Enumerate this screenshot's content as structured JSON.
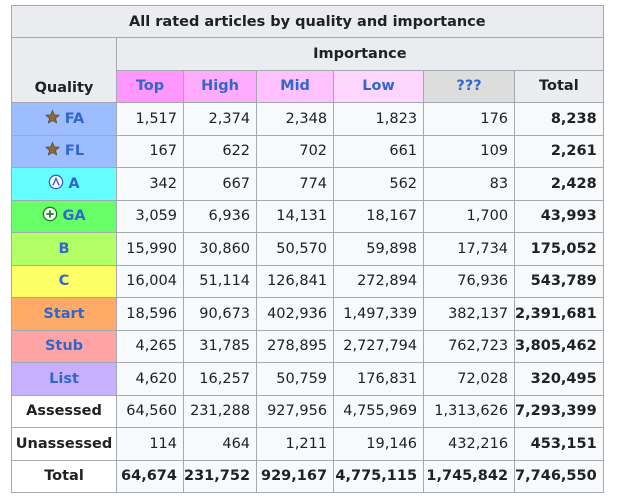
{
  "caption": "All rated articles by quality and importance",
  "importance_label": "Importance",
  "quality_label": "Quality",
  "columns": [
    {
      "label": "Top",
      "color": "#ff97ff"
    },
    {
      "label": "High",
      "color": "#ffacff"
    },
    {
      "label": "Mid",
      "color": "#ffc1ff"
    },
    {
      "label": "Low",
      "color": "#ffd6ff"
    },
    {
      "label": "???",
      "color": "#dddddd"
    }
  ],
  "total_label": "Total",
  "rows": [
    {
      "label": "FA",
      "icon": "star-icon",
      "color": "#9cbdff",
      "values": [
        "1,517",
        "2,374",
        "2,348",
        "1,823",
        "176"
      ],
      "total": "8,238"
    },
    {
      "label": "FL",
      "icon": "star-icon",
      "color": "#9cbdff",
      "values": [
        "167",
        "622",
        "702",
        "661",
        "109"
      ],
      "total": "2,261"
    },
    {
      "label": "A",
      "icon": "a-class-icon",
      "color": "#66ffff",
      "values": [
        "342",
        "667",
        "774",
        "562",
        "83"
      ],
      "total": "2,428"
    },
    {
      "label": "GA",
      "icon": "good-article-icon",
      "color": "#66ff66",
      "values": [
        "3,059",
        "6,936",
        "14,131",
        "18,167",
        "1,700"
      ],
      "total": "43,993"
    },
    {
      "label": "B",
      "icon": "",
      "color": "#b2ff66",
      "values": [
        "15,990",
        "30,860",
        "50,570",
        "59,898",
        "17,734"
      ],
      "total": "175,052"
    },
    {
      "label": "C",
      "icon": "",
      "color": "#ffff66",
      "values": [
        "16,004",
        "51,114",
        "126,841",
        "272,894",
        "76,936"
      ],
      "total": "543,789"
    },
    {
      "label": "Start",
      "icon": "",
      "color": "#ffaa66",
      "values": [
        "18,596",
        "90,673",
        "402,936",
        "1,497,339",
        "382,137"
      ],
      "total": "2,391,681"
    },
    {
      "label": "Stub",
      "icon": "",
      "color": "#ffa4a4",
      "values": [
        "4,265",
        "31,785",
        "278,895",
        "2,727,794",
        "762,723"
      ],
      "total": "3,805,462"
    },
    {
      "label": "List",
      "icon": "",
      "color": "#c7b1ff",
      "values": [
        "4,620",
        "16,257",
        "50,759",
        "176,831",
        "72,028"
      ],
      "total": "320,495"
    },
    {
      "label": "Assessed",
      "icon": "",
      "color": "#ffffff",
      "plain": true,
      "values": [
        "64,560",
        "231,288",
        "927,956",
        "4,755,969",
        "1,313,626"
      ],
      "total": "7,293,399"
    },
    {
      "label": "Unassessed",
      "icon": "",
      "color": "#ffffff",
      "plain": true,
      "values": [
        "114",
        "464",
        "1,211",
        "19,146",
        "432,216"
      ],
      "total": "453,151"
    }
  ],
  "totals_row": {
    "label": "Total",
    "values": [
      "64,674",
      "231,752",
      "929,167",
      "4,775,115",
      "1,745,842"
    ],
    "total": "7,746,550"
  }
}
